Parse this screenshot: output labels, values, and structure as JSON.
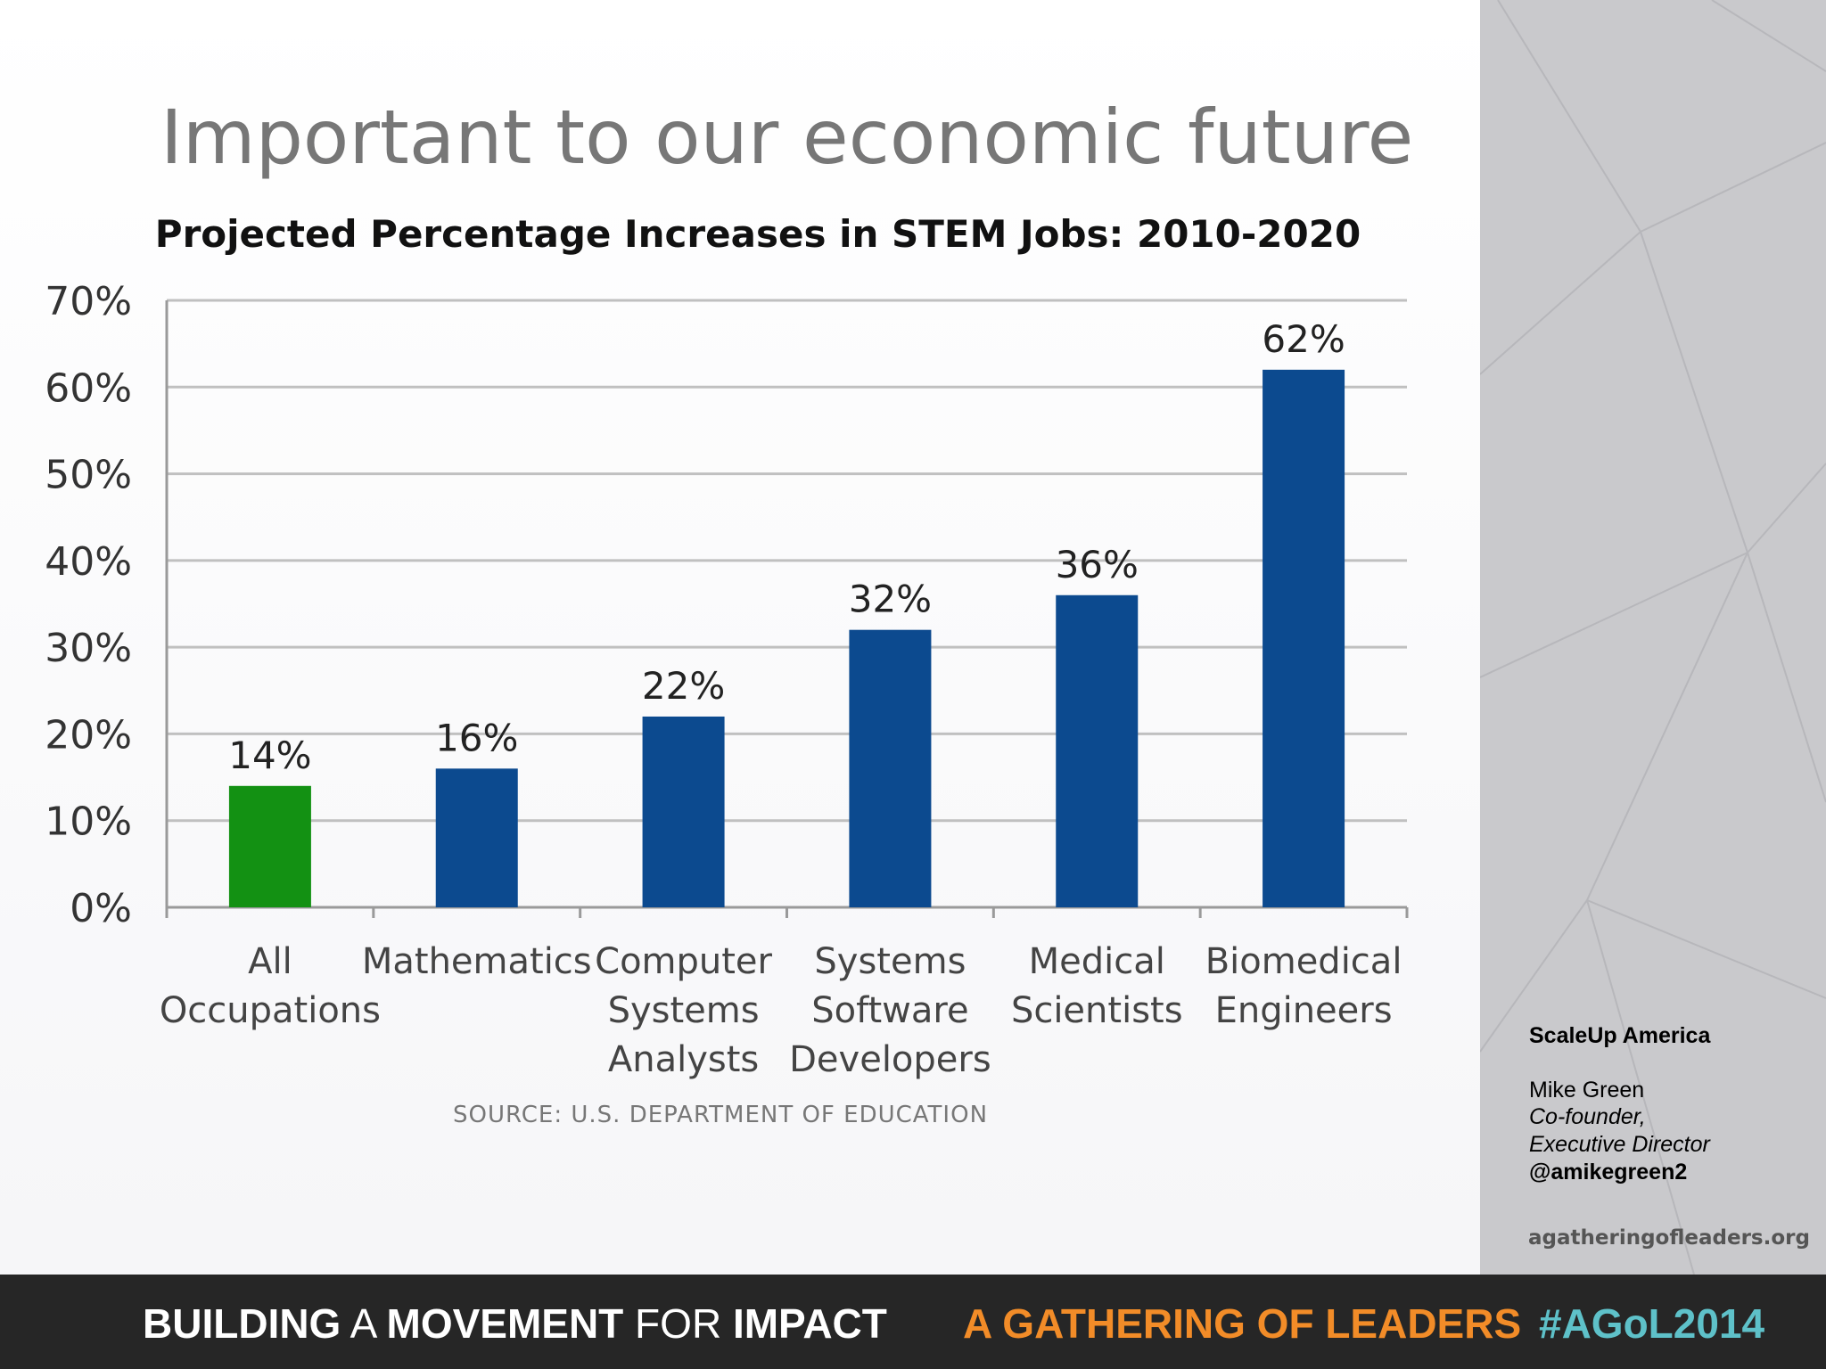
{
  "slide": {
    "title": "Important to our economic future",
    "source": "SOURCE:  U.S. DEPARTMENT OF EDUCATION"
  },
  "chart_data": {
    "type": "bar",
    "title": "Projected Percentage Increases in STEM Jobs: 2010-2020",
    "categories": [
      [
        "All",
        "Occupations"
      ],
      [
        "Mathematics"
      ],
      [
        "Computer",
        "Systems",
        "Analysts"
      ],
      [
        "Systems",
        "Software",
        "Developers"
      ],
      [
        "Medical",
        "Scientists"
      ],
      [
        "Biomedical",
        "Engineers"
      ]
    ],
    "values": [
      14,
      16,
      22,
      32,
      36,
      62
    ],
    "data_labels": [
      "14%",
      "16%",
      "22%",
      "32%",
      "36%",
      "62%"
    ],
    "bar_colors": [
      "#139113",
      "#0c4a8f",
      "#0c4a8f",
      "#0c4a8f",
      "#0c4a8f",
      "#0c4a8f"
    ],
    "ylim": [
      0,
      70
    ],
    "yticks": [
      0,
      10,
      20,
      30,
      40,
      50,
      60,
      70
    ],
    "ytick_labels": [
      "0%",
      "10%",
      "20%",
      "30%",
      "40%",
      "50%",
      "60%",
      "70%"
    ],
    "grid": true,
    "xlabel": "",
    "ylabel": ""
  },
  "sidebar": {
    "org": "ScaleUp America",
    "name": "Mike Green",
    "role_line1": "Co-founder,",
    "role_line2": "Executive Director",
    "handle": "@amikegreen2",
    "url": "agatheringofleaders.org"
  },
  "footer": {
    "tagline_part1": "BUILDING",
    "tagline_part2": " A ",
    "tagline_part3": "MOVEMENT",
    "tagline_part4": " FOR ",
    "tagline_part5": "IMPACT",
    "event": "A GATHERING OF LEADERS",
    "hashtag": "#AGoL2014"
  },
  "colors": {
    "accent_orange": "#f28c28",
    "accent_teal": "#5ec1c9",
    "bar_blue": "#0c4a8f",
    "bar_green": "#139113"
  }
}
